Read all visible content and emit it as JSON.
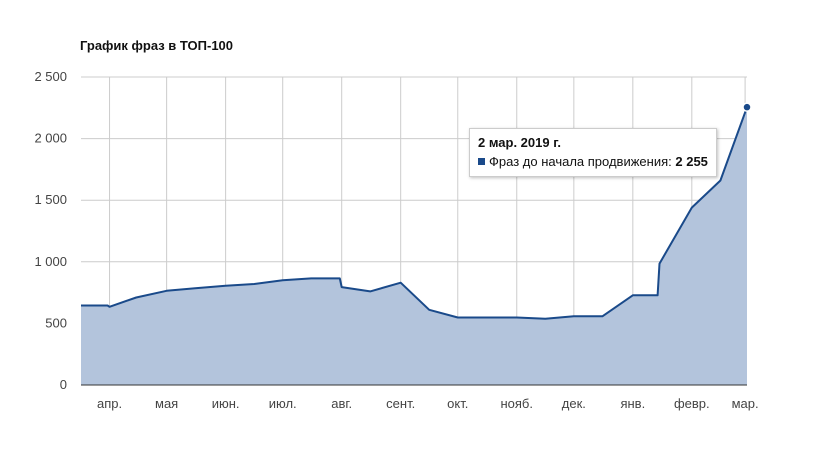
{
  "chart_data": {
    "type": "area",
    "title": "График фраз в ТОП-100",
    "xlabel": "",
    "ylabel": "",
    "ylim": [
      0,
      2500
    ],
    "yticks": [
      0,
      500,
      1000,
      1500,
      2000,
      2500
    ],
    "ytick_labels": [
      "0",
      "500",
      "1 000",
      "1 500",
      "2 000",
      "2 500"
    ],
    "xlim": [
      "2018-03-17",
      "2019-03-02"
    ],
    "x_ticks": [
      {
        "date": "2018-04-01",
        "label": "апр."
      },
      {
        "date": "2018-05-01",
        "label": "мая"
      },
      {
        "date": "2018-06-01",
        "label": "июн."
      },
      {
        "date": "2018-07-01",
        "label": "июл."
      },
      {
        "date": "2018-08-01",
        "label": "авг."
      },
      {
        "date": "2018-09-01",
        "label": "сент."
      },
      {
        "date": "2018-10-01",
        "label": "окт."
      },
      {
        "date": "2018-11-01",
        "label": "нояб."
      },
      {
        "date": "2018-12-01",
        "label": "дек."
      },
      {
        "date": "2019-01-01",
        "label": "янв."
      },
      {
        "date": "2019-02-01",
        "label": "февр."
      },
      {
        "date": "2019-03-01",
        "label": "мар."
      }
    ],
    "grid": true,
    "colors": {
      "line": "#1a4a8a",
      "fill": "#b3c4dc",
      "grid": "#cccccc",
      "axis": "#333333"
    },
    "series": [
      {
        "name": "Фраз до начала продвижения",
        "points": [
          {
            "x": "2018-03-17",
            "y": 645
          },
          {
            "x": "2018-03-31",
            "y": 645
          },
          {
            "x": "2018-04-01",
            "y": 635
          },
          {
            "x": "2018-04-15",
            "y": 710
          },
          {
            "x": "2018-05-01",
            "y": 765
          },
          {
            "x": "2018-05-16",
            "y": 785
          },
          {
            "x": "2018-06-01",
            "y": 805
          },
          {
            "x": "2018-06-16",
            "y": 820
          },
          {
            "x": "2018-07-01",
            "y": 850
          },
          {
            "x": "2018-07-16",
            "y": 865
          },
          {
            "x": "2018-07-31",
            "y": 865
          },
          {
            "x": "2018-08-01",
            "y": 795
          },
          {
            "x": "2018-08-16",
            "y": 760
          },
          {
            "x": "2018-09-01",
            "y": 830
          },
          {
            "x": "2018-09-16",
            "y": 610
          },
          {
            "x": "2018-10-01",
            "y": 548
          },
          {
            "x": "2018-10-16",
            "y": 548
          },
          {
            "x": "2018-11-01",
            "y": 548
          },
          {
            "x": "2018-11-16",
            "y": 538
          },
          {
            "x": "2018-12-01",
            "y": 558
          },
          {
            "x": "2018-12-16",
            "y": 558
          },
          {
            "x": "2019-01-01",
            "y": 728
          },
          {
            "x": "2019-01-14",
            "y": 728
          },
          {
            "x": "2019-01-15",
            "y": 985
          },
          {
            "x": "2019-02-01",
            "y": 1440
          },
          {
            "x": "2019-02-16",
            "y": 1660
          },
          {
            "x": "2019-03-02",
            "y": 2255
          }
        ]
      }
    ],
    "tooltip": {
      "date": "2 мар. 2019 г.",
      "series": "Фраз до начала продвижения:",
      "value": "2 255"
    }
  }
}
